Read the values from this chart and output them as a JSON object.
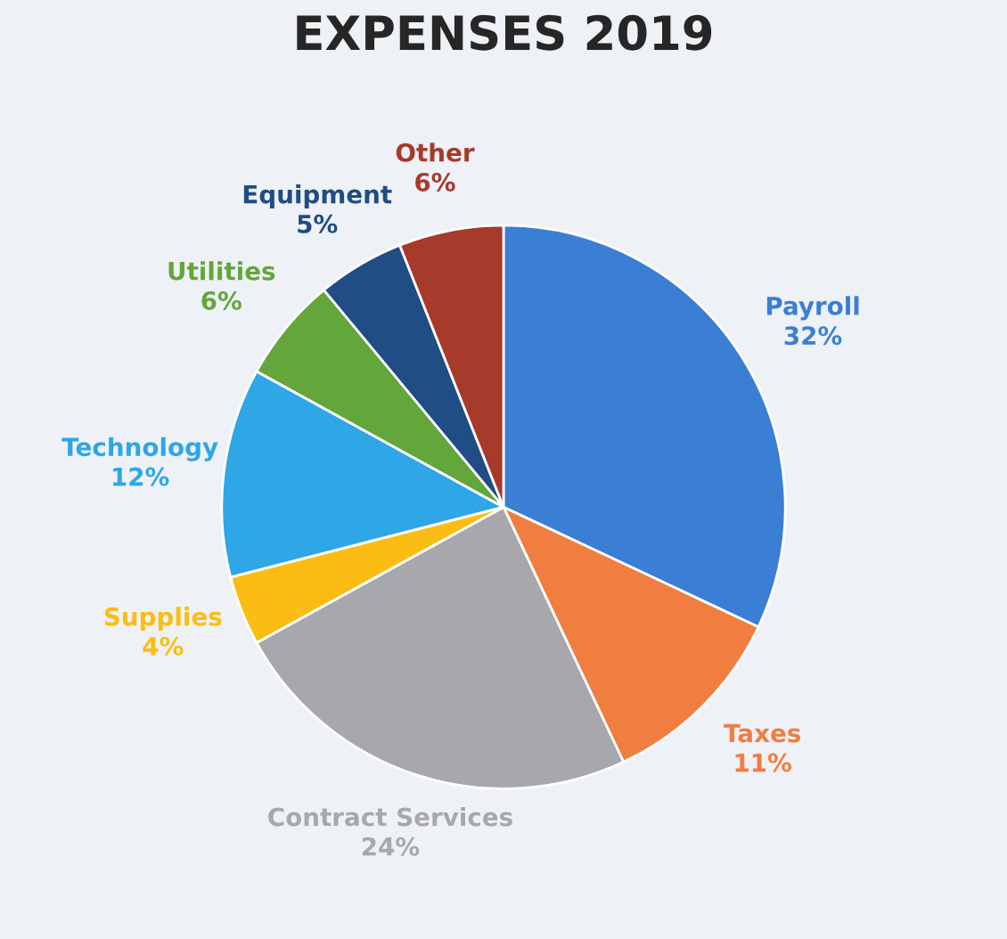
{
  "chart_data": {
    "type": "pie",
    "title": "EXPENSES 2019",
    "categories": [
      "Payroll",
      "Taxes",
      "Contract Services",
      "Supplies",
      "Technology",
      "Utilities",
      "Equipment",
      "Other"
    ],
    "values": [
      32,
      11,
      24,
      4,
      12,
      6,
      5,
      6
    ],
    "value_labels": [
      "32%",
      "11%",
      "24%",
      "4%",
      "12%",
      "6%",
      "5%",
      "6%"
    ],
    "colors": [
      "#3b7fd4",
      "#f07e40",
      "#a8a8ac",
      "#fbbd14",
      "#2fa6e6",
      "#63a63b",
      "#1f4d84",
      "#a63b2b"
    ],
    "legend": false
  }
}
